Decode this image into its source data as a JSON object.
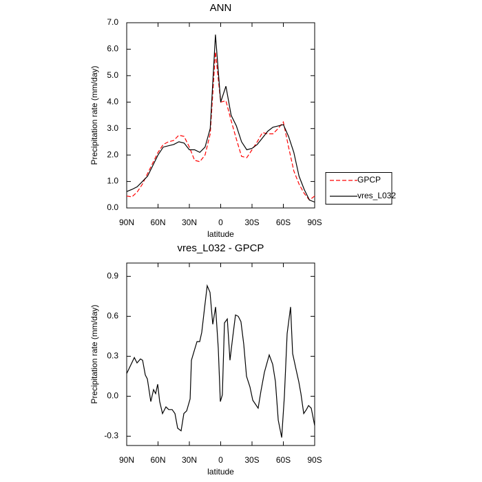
{
  "chart_data": [
    {
      "type": "line",
      "title": "ANN",
      "xlabel": "latitude",
      "ylabel": "Precipitation rate (mm/day)",
      "xlim": [
        90,
        -90
      ],
      "xticks": [
        {
          "value": 90,
          "label": "90N"
        },
        {
          "value": 60,
          "label": "60N"
        },
        {
          "value": 30,
          "label": "30N"
        },
        {
          "value": 0,
          "label": "0"
        },
        {
          "value": -30,
          "label": "30S"
        },
        {
          "value": -60,
          "label": "60S"
        },
        {
          "value": -90,
          "label": "90S"
        }
      ],
      "ylim": [
        0,
        7
      ],
      "yticks": [
        {
          "value": 0,
          "label": "0.0"
        },
        {
          "value": 1,
          "label": "1.0"
        },
        {
          "value": 2,
          "label": "2.0"
        },
        {
          "value": 3,
          "label": "3.0"
        },
        {
          "value": 4,
          "label": "4.0"
        },
        {
          "value": 5,
          "label": "5.0"
        },
        {
          "value": 6,
          "label": "6.0"
        },
        {
          "value": 7,
          "label": "7.0"
        }
      ],
      "legend": "outside right",
      "x": [
        90,
        85,
        80,
        75,
        70,
        65,
        60,
        55,
        50,
        45,
        40,
        35,
        30,
        25,
        20,
        15,
        10,
        5,
        0,
        -5,
        -10,
        -15,
        -20,
        -25,
        -30,
        -35,
        -40,
        -45,
        -50,
        -55,
        -60,
        -65,
        -70,
        -75,
        -80,
        -85,
        -90
      ],
      "series": [
        {
          "name": "GPCP",
          "color": "#ff0000",
          "dash": true,
          "values": [
            0.45,
            0.42,
            0.6,
            0.9,
            1.3,
            1.7,
            2.1,
            2.4,
            2.5,
            2.55,
            2.75,
            2.7,
            2.3,
            1.8,
            1.75,
            2.0,
            2.8,
            5.9,
            4.0,
            4.05,
            3.3,
            2.6,
            1.95,
            1.9,
            2.2,
            2.5,
            2.85,
            2.8,
            2.8,
            3.0,
            3.25,
            2.3,
            1.4,
            0.9,
            0.55,
            0.3,
            0.45
          ]
        },
        {
          "name": "vres_L032",
          "color": "#000000",
          "dash": false,
          "values": [
            0.62,
            0.7,
            0.8,
            1.0,
            1.2,
            1.6,
            2.0,
            2.3,
            2.35,
            2.4,
            2.5,
            2.45,
            2.2,
            2.2,
            2.1,
            2.3,
            3.0,
            6.55,
            4.0,
            4.6,
            3.5,
            3.1,
            2.5,
            2.2,
            2.25,
            2.4,
            2.65,
            2.9,
            3.05,
            3.1,
            3.15,
            2.7,
            2.1,
            1.2,
            0.7,
            0.3,
            0.22
          ]
        }
      ]
    },
    {
      "type": "line",
      "title": "vres_L032 - GPCP",
      "xlabel": "latitude",
      "ylabel": "Precipitation rate (mm/day)",
      "xlim": [
        90,
        -90
      ],
      "xticks": [
        {
          "value": 90,
          "label": "90N"
        },
        {
          "value": 60,
          "label": "60N"
        },
        {
          "value": 30,
          "label": "30N"
        },
        {
          "value": 0,
          "label": "0"
        },
        {
          "value": -30,
          "label": "30S"
        },
        {
          "value": -60,
          "label": "60S"
        },
        {
          "value": -90,
          "label": "90S"
        }
      ],
      "ylim": [
        -0.37,
        1.0
      ],
      "yticks": [
        -0.3,
        {
          "value": 0,
          "label": "0.0"
        },
        0.3,
        0.6,
        0.9
      ],
      "x": [
        90,
        82.7,
        80.1,
        76.8,
        74.8,
        72.2,
        70.2,
        66.9,
        64.3,
        62.3,
        60.3,
        58.4,
        55.7,
        52.4,
        49.8,
        46.5,
        43.8,
        41.2,
        37.9,
        35.3,
        32.6,
        29.3,
        28.0,
        25.4,
        22.7,
        20.1,
        18.1,
        15.5,
        12.9,
        10.2,
        7.6,
        4.9,
        2.3,
        0.3,
        -1.6,
        -3.6,
        -6.3,
        -8.9,
        -11.5,
        -14.2,
        -16.8,
        -19.4,
        -22.1,
        -24.7,
        -28.0,
        -30.7,
        -33.3,
        -35.9,
        -38.6,
        -41.9,
        -46.5,
        -49.8,
        -52.4,
        -55.1,
        -58.4,
        -61.0,
        -63.6,
        -66.9,
        -68.9,
        -72.2,
        -74.8,
        -76.8,
        -79.5,
        -82.1,
        -84.1,
        -86.7,
        -90
      ],
      "color": "#000000",
      "values": [
        0.17,
        0.29,
        0.25,
        0.28,
        0.27,
        0.16,
        0.13,
        -0.04,
        0.05,
        0.02,
        0.09,
        -0.04,
        -0.13,
        -0.08,
        -0.1,
        -0.1,
        -0.13,
        -0.24,
        -0.26,
        -0.13,
        -0.11,
        -0.02,
        0.27,
        0.34,
        0.41,
        0.41,
        0.48,
        0.66,
        0.83,
        0.78,
        0.54,
        0.67,
        0.36,
        -0.04,
        0.01,
        0.55,
        0.58,
        0.27,
        0.44,
        0.61,
        0.6,
        0.56,
        0.39,
        0.15,
        0.07,
        -0.03,
        -0.06,
        -0.09,
        0.04,
        0.18,
        0.31,
        0.24,
        0.11,
        -0.18,
        -0.31,
        0,
        0.47,
        0.67,
        0.32,
        0.2,
        0.11,
        0.02,
        -0.13,
        -0.1,
        -0.07,
        -0.09,
        -0.22
      ]
    }
  ]
}
